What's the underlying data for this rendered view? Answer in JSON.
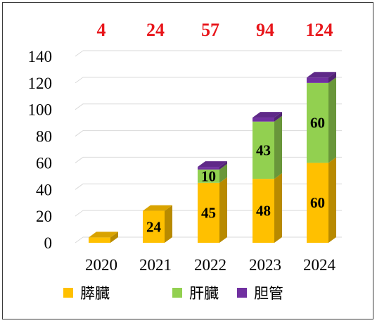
{
  "chart_data": {
    "type": "bar",
    "stacked": true,
    "three_d": true,
    "categories": [
      "2020",
      "2021",
      "2022",
      "2023",
      "2024"
    ],
    "series": [
      {
        "name": "膵臓",
        "values": [
          4,
          24,
          45,
          48,
          60
        ],
        "color": "#FFC000",
        "labels": [
          "",
          "24",
          "45",
          "48",
          "60"
        ]
      },
      {
        "name": "肝臓",
        "values": [
          0,
          0,
          10,
          43,
          60
        ],
        "color": "#92D050",
        "labels": [
          "",
          "",
          "10",
          "43",
          "60"
        ]
      },
      {
        "name": "胆管",
        "values": [
          0,
          0,
          2,
          3,
          4
        ],
        "color": "#7030A0",
        "labels": [
          "",
          "",
          "",
          "",
          ""
        ]
      }
    ],
    "totals": [
      "4",
      "24",
      "57",
      "94",
      "124"
    ],
    "y_ticks": [
      "0",
      "20",
      "40",
      "60",
      "80",
      "100",
      "120",
      "140"
    ],
    "ylim": [
      0,
      140
    ],
    "grid": true,
    "legend_position": "bottom",
    "colors": {
      "total_text": "#E8161B",
      "grid": "#D9D9D9"
    }
  }
}
